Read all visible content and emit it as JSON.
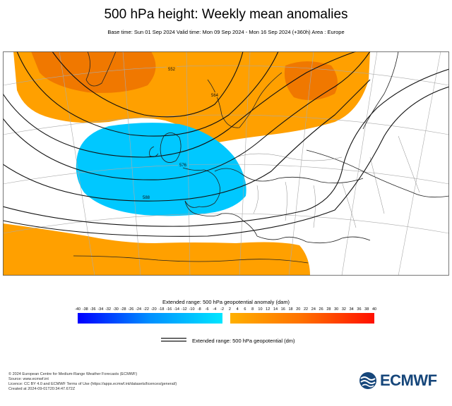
{
  "title": "500 hPa height: Weekly mean anomalies",
  "subtitle": "Base time: Sun 01 Sep 2024 Valid time: Mon 09 Sep 2024 - Mon 16 Sep 2024 (+360h) Area : Europe",
  "map": {
    "region": "Europe",
    "contour_labels": [
      "552",
      "564",
      "576",
      "588"
    ],
    "anomaly_colors": {
      "negative": "#00c8ff",
      "positive_light": "#ffa000",
      "positive_strong": "#f07800"
    }
  },
  "colorbar": {
    "title": "Extended range: 500 hPa geopotential anomaly (dam)",
    "ticks": [
      "-40",
      "-38",
      "-36",
      "-34",
      "-32",
      "-30",
      "-28",
      "-26",
      "-24",
      "-22",
      "-20",
      "-18",
      "-16",
      "-14",
      "-12",
      "-10",
      "-8",
      "-6",
      "-4",
      "-2",
      "2",
      "4",
      "6",
      "8",
      "10",
      "12",
      "14",
      "16",
      "18",
      "20",
      "22",
      "24",
      "26",
      "28",
      "30",
      "32",
      "34",
      "36",
      "38",
      "40"
    ]
  },
  "legend": {
    "contour_label": "Extended range: 500 hPa geopotential (dm)"
  },
  "footer": {
    "copyright": "© 2024 European Centre for Medium-Range Weather Forecasts (ECMWF)",
    "source": "Source: www.ecmwf.int",
    "licence": "Licence: CC BY 4.0 and ECMWF Terms of Use (https://apps.ecmwf.int/datasets/licences/general/)",
    "created": "Created at 2024-09-01T20:34:47.672Z"
  },
  "logo": {
    "text": "ECMWF",
    "color": "#16467a"
  }
}
